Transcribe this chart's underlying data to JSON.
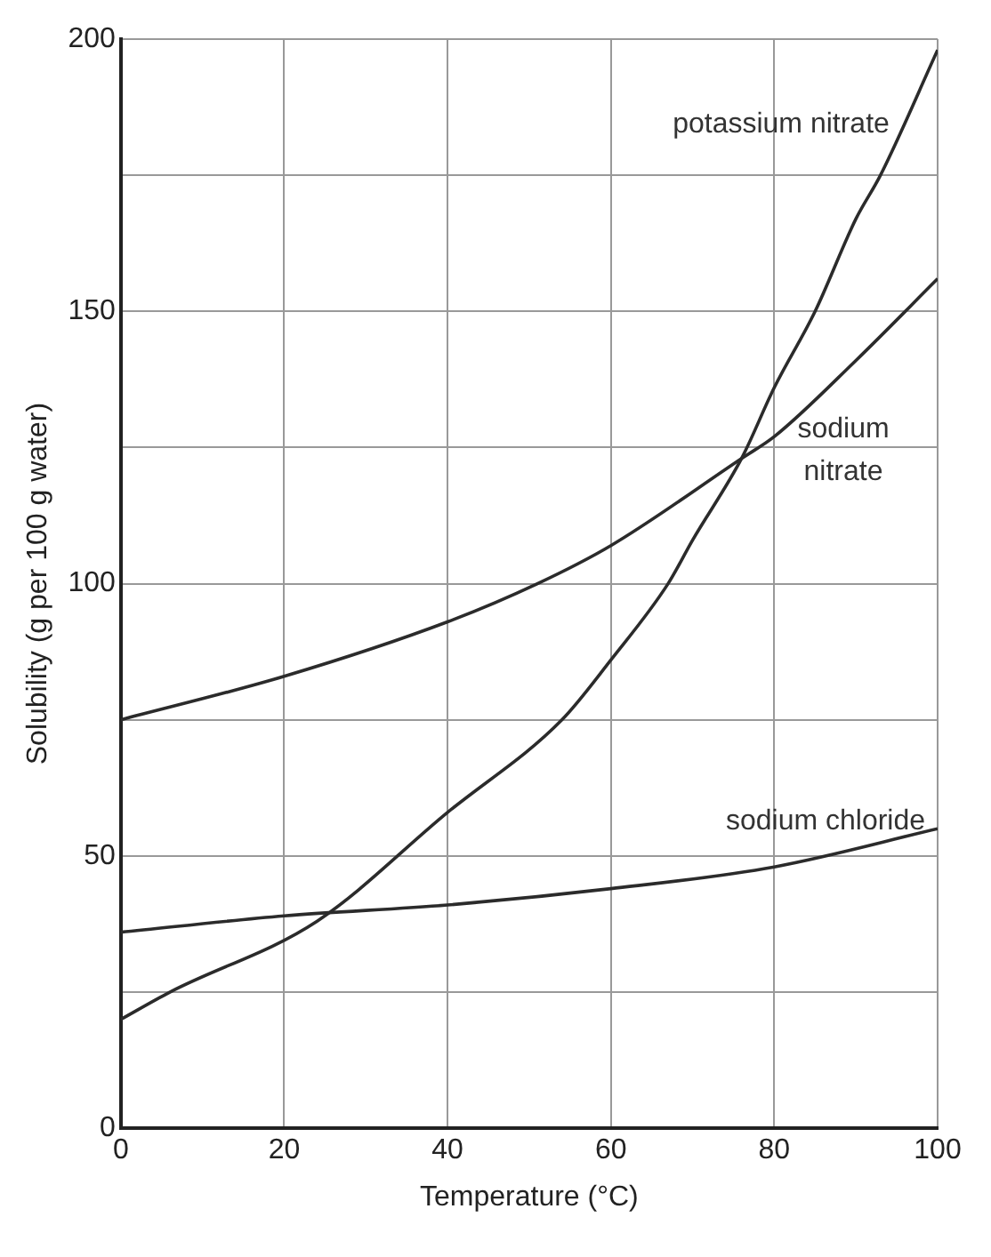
{
  "chart_data": {
    "type": "line",
    "xlabel": "Temperature (°C)",
    "ylabel": "Solubility (g per 100 g water)",
    "xlim": [
      0,
      100
    ],
    "xticks": [
      0,
      20,
      40,
      60,
      80,
      100
    ],
    "ylim": [
      0,
      200
    ],
    "yticks": [
      0,
      {
        "value": 25,
        "label": null
      },
      50,
      {
        "value": 75,
        "label": null
      },
      100,
      {
        "value": 125,
        "label": null
      },
      150,
      {
        "value": 175,
        "label": null
      },
      200
    ],
    "grid": true,
    "legend": false,
    "marker": "none",
    "line_style": "solid",
    "series": [
      {
        "name": "potassium nitrate",
        "color": "#2b2b2b",
        "x": [
          0,
          6,
          24,
          40,
          54,
          60,
          67,
          70,
          76,
          80,
          85,
          90,
          93,
          100
        ],
        "values": [
          20,
          25,
          38,
          58,
          75,
          86,
          100,
          108,
          123,
          136,
          150,
          167,
          175,
          198
        ]
      },
      {
        "name": "sodium nitrate",
        "color": "#2b2b2b",
        "x": [
          0,
          20,
          40,
          51,
          60,
          76,
          80,
          90,
          100
        ],
        "values": [
          75,
          83,
          93,
          100,
          107,
          123,
          127,
          141,
          156
        ]
      },
      {
        "name": "sodium chloride",
        "color": "#2b2b2b",
        "x": [
          0,
          20,
          40,
          60,
          80,
          100
        ],
        "values": [
          36,
          39,
          41,
          44,
          48,
          55
        ]
      }
    ]
  }
}
